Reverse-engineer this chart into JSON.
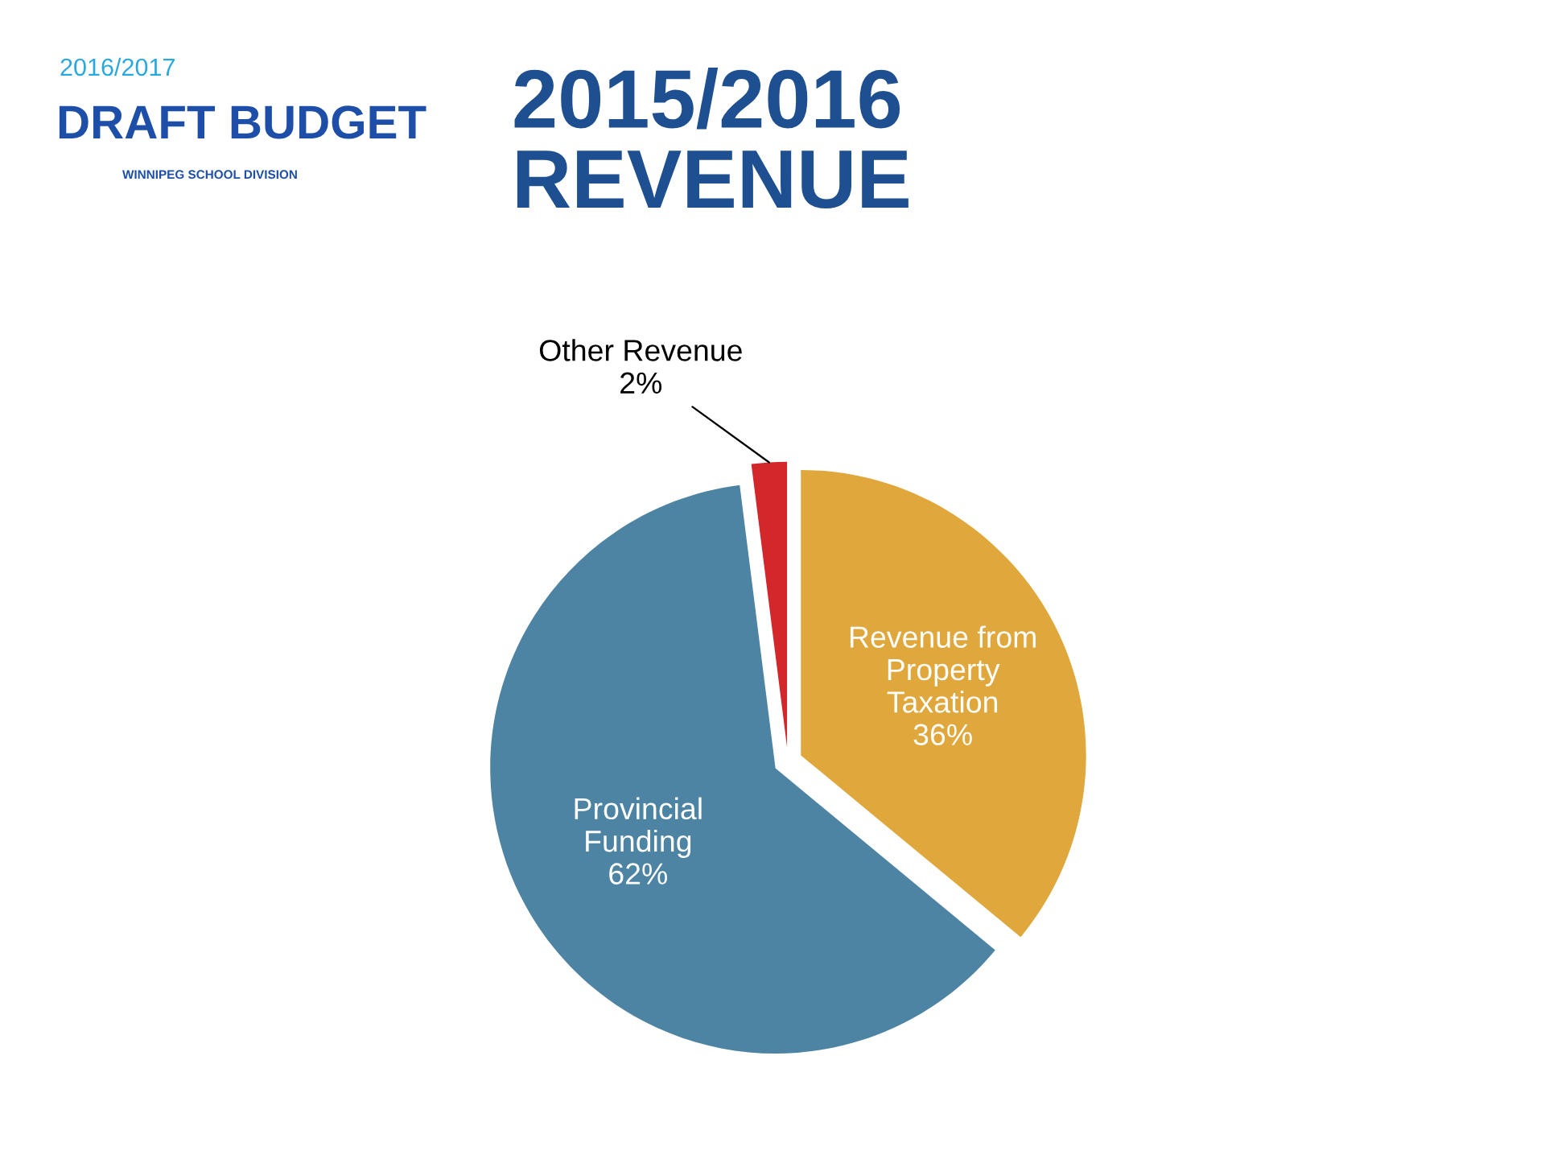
{
  "chart_data": {
    "type": "pie",
    "title": "2015/2016\nREVENUE",
    "categories": [
      "Revenue from\nProperty\nTaxation",
      "Provincial\nFunding",
      "Other Revenue"
    ],
    "values": [
      36,
      62,
      2
    ],
    "colors": [
      "#e0a83c",
      "#4d84a3",
      "#d2272b"
    ],
    "value_labels": [
      "36%",
      "62%",
      "2%"
    ],
    "annotations": [
      "2016/2017",
      "DRAFT BUDGET",
      "WINNIPEG SCHOOL DIVISION"
    ]
  }
}
